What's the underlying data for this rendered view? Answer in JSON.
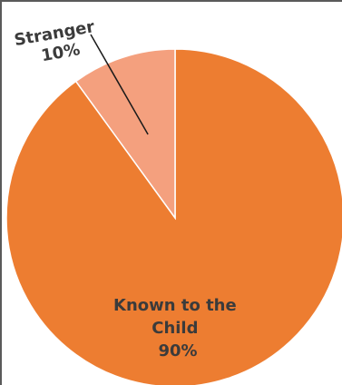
{
  "chart_data": {
    "type": "pie",
    "slices": [
      {
        "label": "Known to the Child",
        "label_lines": [
          "Known to the",
          "Child"
        ],
        "value": 90,
        "value_label": "90%",
        "color": "#ED7D31"
      },
      {
        "label": "Stranger",
        "label_lines": [
          "Stranger"
        ],
        "value": 10,
        "value_label": "10%",
        "color": "#F4A07E"
      }
    ],
    "label_color": "#3B3B3B"
  }
}
